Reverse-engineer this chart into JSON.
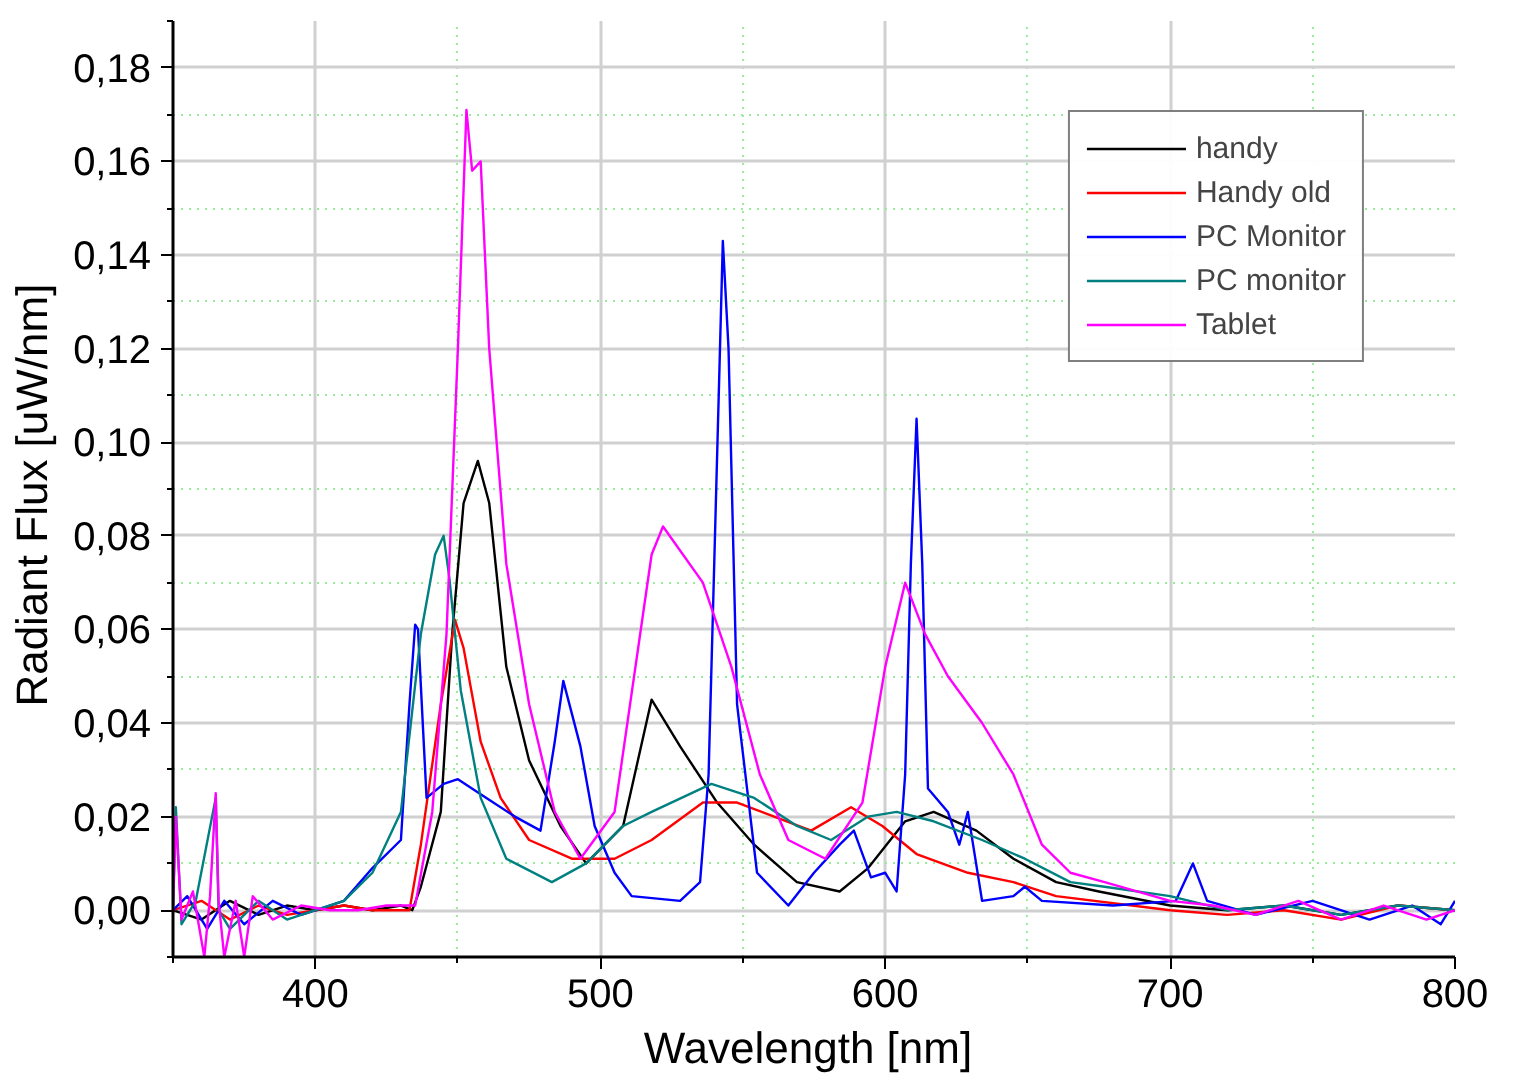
{
  "chart_data": {
    "type": "line",
    "xlabel": "Wavelength  [nm]",
    "ylabel": "Radiant Flux  [uW/nm]",
    "xlim": [
      350,
      800
    ],
    "ylim": [
      -0.01,
      0.19
    ],
    "xticks": [
      {
        "value": 350,
        "label": null
      },
      400,
      {
        "value": 450,
        "label": null
      },
      500,
      {
        "value": 550,
        "label": null
      },
      600,
      {
        "value": 650,
        "label": null
      },
      700,
      {
        "value": 750,
        "label": null
      },
      800
    ],
    "yticks": [
      {
        "value": -0.01,
        "label": null
      },
      {
        "value": 0.01,
        "label": null
      },
      {
        "value": 0.03,
        "label": null
      },
      {
        "value": 0.05,
        "label": null
      },
      {
        "value": 0.07,
        "label": null
      },
      {
        "value": 0.09,
        "label": null
      },
      {
        "value": 0.11,
        "label": null
      },
      {
        "value": 0.13,
        "label": null
      },
      {
        "value": 0.15,
        "label": null
      },
      {
        "value": 0.17,
        "label": null
      },
      {
        "value": 0.19,
        "label": null
      },
      {
        "value": 0,
        "label": "0,00"
      },
      {
        "value": 0.02,
        "label": "0,02"
      },
      {
        "value": 0.04,
        "label": "0,04"
      },
      {
        "value": 0.06,
        "label": "0,06"
      },
      {
        "value": 0.08,
        "label": "0,08"
      },
      {
        "value": 0.1,
        "label": "0,10"
      },
      {
        "value": 0.12,
        "label": "0,12"
      },
      {
        "value": 0.14,
        "label": "0,14"
      },
      {
        "value": 0.16,
        "label": "0,16"
      },
      {
        "value": 0.18,
        "label": "0,18"
      }
    ],
    "grid": true,
    "legend": "top right",
    "line_style": "solid",
    "marker": "none",
    "series": [
      {
        "name": "handy",
        "color": "#000000",
        "x": [
          350,
          360,
          370,
          380,
          390,
          400,
          410,
          420,
          430,
          434,
          437,
          444,
          448,
          452,
          457,
          461,
          467,
          475,
          486,
          495,
          508,
          518,
          528,
          541,
          554,
          569,
          584,
          594,
          607,
          617,
          632,
          645,
          660,
          675,
          700,
          720,
          740,
          760,
          780,
          800
        ],
        "values": [
          0.0,
          -0.002,
          0.002,
          -0.001,
          0.001,
          0.0,
          0.001,
          0.0,
          0.001,
          0.0,
          0.005,
          0.021,
          0.059,
          0.087,
          0.096,
          0.087,
          0.052,
          0.032,
          0.018,
          0.01,
          0.018,
          0.045,
          0.035,
          0.023,
          0.014,
          0.006,
          0.004,
          0.009,
          0.019,
          0.021,
          0.017,
          0.011,
          0.006,
          0.004,
          0.001,
          0.0,
          0.001,
          -0.001,
          0.001,
          0.0
        ]
      },
      {
        "name": "Handy old",
        "color": "#ff0000",
        "x": [
          350,
          360,
          370,
          380,
          390,
          400,
          410,
          420,
          433,
          437,
          444,
          449,
          452,
          458,
          465,
          475,
          490,
          505,
          518,
          536,
          548,
          561,
          574,
          588,
          599,
          611,
          629,
          645,
          660,
          700,
          720,
          740,
          760,
          780,
          800
        ],
        "values": [
          0.0,
          0.002,
          -0.002,
          0.001,
          -0.001,
          0.0,
          0.001,
          0.0,
          0.0,
          0.014,
          0.044,
          0.062,
          0.056,
          0.036,
          0.024,
          0.015,
          0.011,
          0.011,
          0.015,
          0.023,
          0.023,
          0.02,
          0.017,
          0.022,
          0.018,
          0.012,
          0.008,
          0.006,
          0.003,
          0.0,
          -0.001,
          0.0,
          -0.002,
          0.001,
          0.0
        ]
      },
      {
        "name": "PC Monitor",
        "color": "#0000ff",
        "x": [
          350,
          355,
          362,
          368,
          375,
          385,
          395,
          405,
          410,
          420,
          430,
          433,
          435,
          436,
          439,
          445,
          450,
          460,
          470,
          479,
          484,
          487,
          493,
          498,
          505,
          511,
          528,
          535,
          538,
          542,
          543,
          545,
          548,
          555,
          566,
          575,
          584,
          589,
          595,
          600,
          604,
          607,
          609,
          611,
          613,
          615,
          622,
          626,
          629,
          634,
          645,
          649,
          655,
          680,
          702,
          708,
          713,
          730,
          750,
          770,
          785,
          795,
          800
        ],
        "values": [
          0.0,
          0.003,
          -0.004,
          0.002,
          -0.003,
          0.002,
          -0.001,
          0.001,
          0.002,
          0.009,
          0.015,
          0.044,
          0.061,
          0.06,
          0.024,
          0.027,
          0.028,
          0.024,
          0.02,
          0.017,
          0.036,
          0.049,
          0.035,
          0.018,
          0.008,
          0.003,
          0.002,
          0.006,
          0.029,
          0.12,
          0.143,
          0.12,
          0.044,
          0.008,
          0.001,
          0.008,
          0.014,
          0.017,
          0.007,
          0.008,
          0.004,
          0.029,
          0.074,
          0.105,
          0.074,
          0.026,
          0.021,
          0.014,
          0.021,
          0.002,
          0.003,
          0.005,
          0.002,
          0.001,
          0.002,
          0.01,
          0.002,
          -0.001,
          0.002,
          -0.002,
          0.001,
          -0.003,
          0.002
        ]
      },
      {
        "name": "PC monitor",
        "color": "#008080",
        "x": [
          350,
          351,
          353,
          358,
          365,
          366,
          370,
          380,
          390,
          400,
          410,
          420,
          430,
          437,
          442,
          445,
          447,
          451,
          458,
          467,
          483,
          495,
          508,
          518,
          539,
          554,
          569,
          581,
          594,
          604,
          617,
          634,
          649,
          665,
          677,
          700,
          720,
          740,
          760,
          780,
          800
        ],
        "values": [
          0.0,
          0.022,
          -0.003,
          0.002,
          0.024,
          0.0,
          -0.004,
          0.002,
          -0.002,
          0.0,
          0.002,
          0.008,
          0.021,
          0.059,
          0.076,
          0.08,
          0.071,
          0.047,
          0.024,
          0.011,
          0.006,
          0.01,
          0.018,
          0.021,
          0.027,
          0.024,
          0.018,
          0.015,
          0.02,
          0.021,
          0.019,
          0.015,
          0.011,
          0.006,
          0.005,
          0.003,
          0.0,
          0.001,
          -0.001,
          0.001,
          0.0
        ]
      },
      {
        "name": "Tablet",
        "color": "#ff00ff",
        "x": [
          350,
          351,
          353,
          357,
          361,
          363,
          365,
          366,
          368,
          372,
          375,
          378,
          385,
          395,
          405,
          415,
          425,
          435,
          441,
          446,
          450,
          453,
          455,
          458,
          461,
          467,
          475,
          484,
          493,
          505,
          518,
          522,
          536,
          546,
          556,
          566,
          579,
          592,
          600,
          607,
          614,
          622,
          634,
          645,
          655,
          665,
          677,
          700,
          715,
          730,
          745,
          760,
          775,
          790,
          800
        ],
        "values": [
          0.0,
          0.02,
          -0.002,
          0.004,
          -0.01,
          0.003,
          0.025,
          0.002,
          -0.01,
          0.002,
          -0.01,
          0.003,
          -0.002,
          0.001,
          0.0,
          0.0,
          0.001,
          0.001,
          0.021,
          0.059,
          0.12,
          0.171,
          0.158,
          0.16,
          0.12,
          0.074,
          0.044,
          0.021,
          0.011,
          0.021,
          0.076,
          0.082,
          0.07,
          0.052,
          0.029,
          0.015,
          0.011,
          0.023,
          0.052,
          0.07,
          0.059,
          0.05,
          0.04,
          0.029,
          0.014,
          0.008,
          0.006,
          0.002,
          0.001,
          -0.001,
          0.002,
          -0.002,
          0.001,
          -0.002,
          0.0
        ]
      }
    ]
  }
}
